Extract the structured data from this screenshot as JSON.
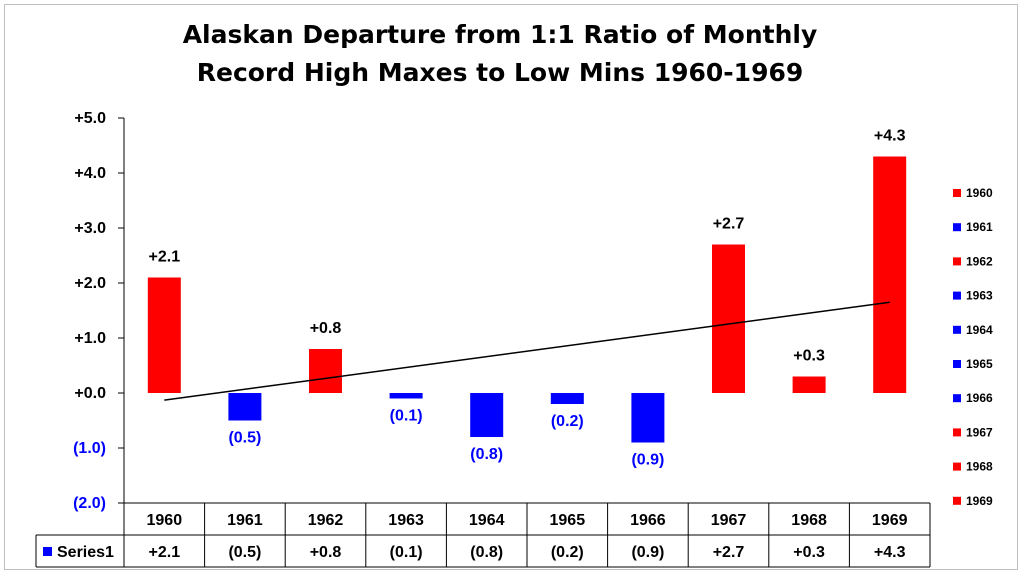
{
  "chart_data": {
    "type": "bar",
    "title_line1": "Alaskan Departure from 1:1 Ratio of Monthly",
    "title_line2": "Record High Maxes to Low Mins 1960-1969",
    "categories": [
      "1960",
      "1961",
      "1962",
      "1963",
      "1964",
      "1965",
      "1966",
      "1967",
      "1968",
      "1969"
    ],
    "series": [
      {
        "name": "Series1",
        "values": [
          2.1,
          -0.5,
          0.8,
          -0.1,
          -0.8,
          -0.2,
          -0.9,
          2.7,
          0.3,
          4.3
        ],
        "labels": [
          "+2.1",
          "(0.5)",
          "+0.8",
          "(0.1)",
          "(0.8)",
          "(0.2)",
          "(0.9)",
          "+2.7",
          "+0.3",
          "+4.3"
        ]
      }
    ],
    "ylim": [
      -2.0,
      5.0
    ],
    "yticks": [
      {
        "value": 5,
        "label": "+5.0"
      },
      {
        "value": 4,
        "label": "+4.0"
      },
      {
        "value": 3,
        "label": "+3.0"
      },
      {
        "value": 2,
        "label": "+2.0"
      },
      {
        "value": 1,
        "label": "+1.0"
      },
      {
        "value": 0,
        "label": "+0.0"
      },
      {
        "value": -1,
        "label": "(1.0)"
      },
      {
        "value": -2,
        "label": "(2.0)"
      }
    ],
    "trendline": {
      "start": -0.13,
      "end": 1.65
    },
    "colors": {
      "positive": "#ff0000",
      "negative": "#0000ff",
      "negative_text": "#0000ff",
      "positive_text": "#000000"
    },
    "legend_position": "right",
    "data_table": true
  }
}
